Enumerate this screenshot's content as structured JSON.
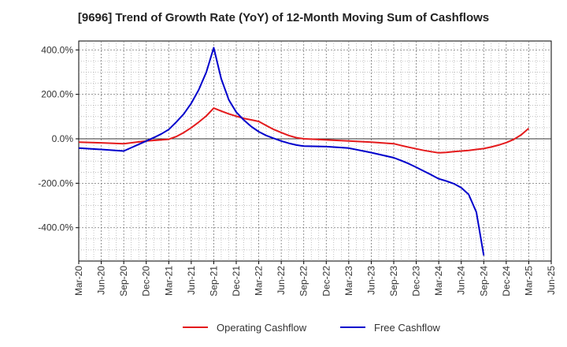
{
  "chart_data": {
    "type": "line",
    "title": "[9696]  Trend of Growth Rate (YoY) of 12-Month Moving Sum of Cashflows",
    "xlabel": "",
    "ylabel": "",
    "ylim": [
      -550,
      440
    ],
    "grid": true,
    "legend_position": "bottom",
    "categories": [
      "Mar-20",
      "Jun-20",
      "Sep-20",
      "Dec-20",
      "Mar-21",
      "Jun-21",
      "Sep-21",
      "Dec-21",
      "Mar-22",
      "Jun-22",
      "Sep-22",
      "Dec-22",
      "Mar-23",
      "Jun-23",
      "Sep-23",
      "Dec-23",
      "Mar-24",
      "Jun-24",
      "Sep-24",
      "Dec-24",
      "Mar-25",
      "Jun-25"
    ],
    "y_ticks": [
      {
        "value": 400,
        "label": "400.0%"
      },
      {
        "value": 200,
        "label": "200.0%"
      },
      {
        "value": 0,
        "label": "0.0%"
      },
      {
        "value": -200,
        "label": "-200.0%"
      },
      {
        "value": -400,
        "label": "-400.0%"
      }
    ],
    "series": [
      {
        "name": "Operating Cashflow",
        "color": "#e41a1c",
        "points": [
          [
            0,
            -15
          ],
          [
            1,
            -18
          ],
          [
            2,
            -22
          ],
          [
            3,
            -10
          ],
          [
            4,
            -2
          ],
          [
            4.33,
            10
          ],
          [
            4.67,
            28
          ],
          [
            5,
            50
          ],
          [
            5.33,
            75
          ],
          [
            5.67,
            103
          ],
          [
            6,
            138
          ],
          [
            6.33,
            125
          ],
          [
            6.67,
            112
          ],
          [
            7,
            102
          ],
          [
            7.33,
            92
          ],
          [
            7.67,
            85
          ],
          [
            8,
            78
          ],
          [
            8.33,
            60
          ],
          [
            8.67,
            42
          ],
          [
            9,
            28
          ],
          [
            9.33,
            15
          ],
          [
            9.67,
            5
          ],
          [
            10,
            0
          ],
          [
            10.5,
            -2
          ],
          [
            11,
            -5
          ],
          [
            12,
            -10
          ],
          [
            13,
            -15
          ],
          [
            14,
            -22
          ],
          [
            14.33,
            -30
          ],
          [
            14.67,
            -38
          ],
          [
            15,
            -45
          ],
          [
            15.33,
            -52
          ],
          [
            15.67,
            -58
          ],
          [
            16,
            -63
          ],
          [
            16.33,
            -61
          ],
          [
            16.67,
            -58
          ],
          [
            17,
            -55
          ],
          [
            17.33,
            -52
          ],
          [
            17.67,
            -48
          ],
          [
            18,
            -44
          ],
          [
            18.33,
            -37
          ],
          [
            18.67,
            -28
          ],
          [
            19,
            -17
          ],
          [
            19.33,
            -3
          ],
          [
            19.67,
            18
          ],
          [
            20,
            47
          ]
        ]
      },
      {
        "name": "Free Cashflow",
        "color": "#0000cc",
        "points": [
          [
            0,
            -42
          ],
          [
            1,
            -48
          ],
          [
            2,
            -55
          ],
          [
            3,
            -10
          ],
          [
            3.33,
            5
          ],
          [
            3.67,
            22
          ],
          [
            4,
            42
          ],
          [
            4.33,
            75
          ],
          [
            4.67,
            112
          ],
          [
            5,
            160
          ],
          [
            5.33,
            220
          ],
          [
            5.67,
            300
          ],
          [
            6,
            410
          ],
          [
            6.33,
            270
          ],
          [
            6.67,
            175
          ],
          [
            7,
            120
          ],
          [
            7.33,
            85
          ],
          [
            7.67,
            55
          ],
          [
            8,
            32
          ],
          [
            8.33,
            15
          ],
          [
            8.67,
            2
          ],
          [
            9,
            -10
          ],
          [
            9.33,
            -20
          ],
          [
            9.67,
            -28
          ],
          [
            10,
            -33
          ],
          [
            11,
            -35
          ],
          [
            12,
            -42
          ],
          [
            13,
            -62
          ],
          [
            14,
            -85
          ],
          [
            14.33,
            -98
          ],
          [
            14.67,
            -112
          ],
          [
            15,
            -128
          ],
          [
            15.33,
            -145
          ],
          [
            15.67,
            -162
          ],
          [
            16,
            -180
          ],
          [
            16.33,
            -190
          ],
          [
            16.67,
            -202
          ],
          [
            17,
            -220
          ],
          [
            17.33,
            -250
          ],
          [
            17.67,
            -330
          ],
          [
            18,
            -525
          ]
        ]
      }
    ]
  }
}
